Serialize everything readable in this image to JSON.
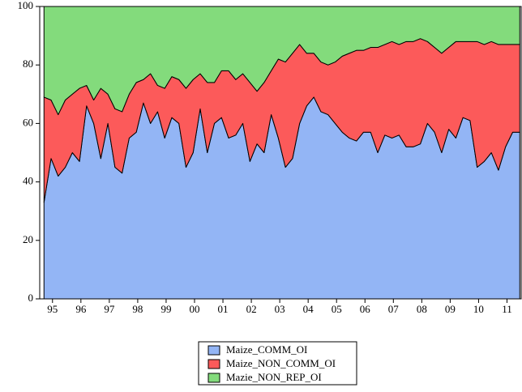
{
  "chart_data": {
    "type": "stacked-area",
    "x": [
      1995.2,
      1995.45,
      1995.7,
      1995.95,
      1996.2,
      1996.45,
      1996.7,
      1996.95,
      1997.2,
      1997.45,
      1997.7,
      1997.95,
      1998.2,
      1998.45,
      1998.7,
      1998.95,
      1999.2,
      1999.45,
      1999.7,
      1999.95,
      2000.2,
      2000.45,
      2000.7,
      2000.95,
      2001.2,
      2001.45,
      2001.7,
      2001.95,
      2002.2,
      2002.45,
      2002.7,
      2002.95,
      2003.2,
      2003.45,
      2003.7,
      2003.95,
      2004.2,
      2004.45,
      2004.7,
      2004.95,
      2005.2,
      2005.45,
      2005.7,
      2005.95,
      2006.2,
      2006.45,
      2006.7,
      2006.95,
      2007.2,
      2007.45,
      2007.7,
      2007.95,
      2008.2,
      2008.45,
      2008.7,
      2008.95,
      2009.2,
      2009.45,
      2009.7,
      2009.95,
      2010.2,
      2010.45,
      2010.7,
      2010.95,
      2011.2,
      2011.45,
      2011.7,
      2011.95
    ],
    "series": [
      {
        "name": "Maize_COMM_OI",
        "color": "#93b5f5",
        "values": [
          33,
          48,
          42,
          45,
          50,
          47,
          66,
          60,
          48,
          60,
          45,
          43,
          55,
          57,
          67,
          60,
          64,
          55,
          62,
          60,
          45,
          50,
          65,
          50,
          60,
          62,
          55,
          56,
          60,
          47,
          53,
          50,
          63,
          55,
          45,
          48,
          60,
          66,
          69,
          64,
          63,
          60,
          57,
          55,
          54,
          57,
          57,
          50,
          56,
          55,
          56,
          52,
          52,
          53,
          60,
          57,
          50,
          58,
          55,
          62,
          61,
          45,
          47,
          50,
          44,
          52,
          57,
          57
        ]
      },
      {
        "name": "Maize_NON_COMM_OI",
        "color": "#fc5a5a",
        "values": [
          36,
          20,
          21,
          23,
          20,
          25,
          7,
          8,
          24,
          10,
          20,
          21,
          15,
          17,
          8,
          17,
          9,
          17,
          14,
          15,
          27,
          25,
          12,
          24,
          14,
          16,
          23,
          19,
          17,
          27,
          18,
          24,
          15,
          27,
          36,
          36,
          27,
          18,
          15,
          17,
          17,
          21,
          26,
          29,
          31,
          28,
          29,
          36,
          31,
          33,
          31,
          36,
          36,
          36,
          28,
          29,
          34,
          28,
          33,
          26,
          27,
          43,
          40,
          38,
          43,
          35,
          30,
          30
        ]
      },
      {
        "name": "Mazie_NON_REP_OI",
        "color": "#83db7c",
        "values": [
          31,
          32,
          37,
          32,
          30,
          28,
          27,
          32,
          28,
          30,
          35,
          36,
          30,
          26,
          25,
          23,
          27,
          28,
          24,
          25,
          28,
          25,
          23,
          26,
          26,
          22,
          22,
          25,
          23,
          26,
          29,
          26,
          22,
          18,
          19,
          16,
          13,
          16,
          16,
          19,
          20,
          19,
          17,
          16,
          15,
          15,
          14,
          14,
          13,
          12,
          13,
          12,
          12,
          11,
          12,
          14,
          16,
          14,
          12,
          12,
          12,
          12,
          13,
          12,
          13,
          13,
          13,
          13
        ]
      }
    ],
    "xlim": [
      1995.05,
      2012
    ],
    "xticks": [
      {
        "value": 1995.5,
        "label": "95"
      },
      {
        "value": 1996.5,
        "label": "96"
      },
      {
        "value": 1997.5,
        "label": "97"
      },
      {
        "value": 1998.5,
        "label": "98"
      },
      {
        "value": 1999.5,
        "label": "99"
      },
      {
        "value": 2000.5,
        "label": "00"
      },
      {
        "value": 2001.5,
        "label": "01"
      },
      {
        "value": 2002.5,
        "label": "02"
      },
      {
        "value": 2003.5,
        "label": "03"
      },
      {
        "value": 2004.5,
        "label": "04"
      },
      {
        "value": 2005.5,
        "label": "05"
      },
      {
        "value": 2006.5,
        "label": "06"
      },
      {
        "value": 2007.5,
        "label": "07"
      },
      {
        "value": 2008.5,
        "label": "08"
      },
      {
        "value": 2009.5,
        "label": "09"
      },
      {
        "value": 2010.5,
        "label": "10"
      },
      {
        "value": 2011.5,
        "label": "11"
      }
    ],
    "ylim": [
      0,
      100
    ],
    "yticks": [
      0,
      20,
      40,
      60,
      80,
      100
    ],
    "legend": "bottom"
  }
}
